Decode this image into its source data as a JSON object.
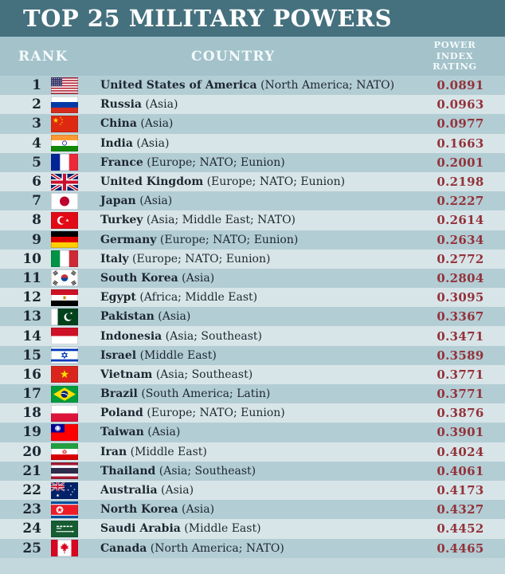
{
  "title": "TOP 25 MILITARY POWERS",
  "columns": {
    "rank": "RANK",
    "country": "COUNTRY",
    "rating_lines": [
      "POWER",
      "INDEX",
      "RATING"
    ]
  },
  "colors": {
    "page_bg": "#c2d8dd",
    "title_bg": "#45707e",
    "header_bg": "#a3c2ca",
    "row_odd": "#b3cdd4",
    "row_even": "#d8e5e8",
    "text_dark": "#1d2731",
    "rating_red": "#93323a"
  },
  "rows": [
    {
      "rank": "1",
      "flag": "us",
      "country": "United States of America",
      "region": "(North America; NATO)",
      "rating": "0.0891"
    },
    {
      "rank": "2",
      "flag": "ru",
      "country": "Russia",
      "region": "(Asia)",
      "rating": "0.0963"
    },
    {
      "rank": "3",
      "flag": "cn",
      "country": "China",
      "region": "(Asia)",
      "rating": "0.0977"
    },
    {
      "rank": "4",
      "flag": "in",
      "country": "India",
      "region": "(Asia)",
      "rating": "0.1663"
    },
    {
      "rank": "5",
      "flag": "fr",
      "country": "France",
      "region": "(Europe; NATO; Eunion)",
      "rating": "0.2001"
    },
    {
      "rank": "6",
      "flag": "gb",
      "country": "United Kingdom",
      "region": "(Europe; NATO; Eunion)",
      "rating": "0.2198"
    },
    {
      "rank": "7",
      "flag": "jp",
      "country": "Japan",
      "region": "(Asia)",
      "rating": "0.2227"
    },
    {
      "rank": "8",
      "flag": "tr",
      "country": "Turkey",
      "region": "(Asia; Middle East; NATO)",
      "rating": "0.2614"
    },
    {
      "rank": "9",
      "flag": "de",
      "country": "Germany",
      "region": "(Europe; NATO; Eunion)",
      "rating": "0.2634"
    },
    {
      "rank": "10",
      "flag": "it",
      "country": "Italy",
      "region": "(Europe; NATO; Eunion)",
      "rating": "0.2772"
    },
    {
      "rank": "11",
      "flag": "kr",
      "country": "South Korea",
      "region": "(Asia)",
      "rating": "0.2804"
    },
    {
      "rank": "12",
      "flag": "eg",
      "country": "Egypt",
      "region": "(Africa; Middle East)",
      "rating": "0.3095"
    },
    {
      "rank": "13",
      "flag": "pk",
      "country": "Pakistan",
      "region": "(Asia)",
      "rating": "0.3367"
    },
    {
      "rank": "14",
      "flag": "id",
      "country": "Indonesia",
      "region": "(Asia; Southeast)",
      "rating": "0.3471"
    },
    {
      "rank": "15",
      "flag": "il",
      "country": "Israel",
      "region": "(Middle East)",
      "rating": "0.3589"
    },
    {
      "rank": "16",
      "flag": "vn",
      "country": "Vietnam",
      "region": "(Asia; Southeast)",
      "rating": "0.3771"
    },
    {
      "rank": "17",
      "flag": "br",
      "country": "Brazil",
      "region": "(South America; Latin)",
      "rating": "0.3771"
    },
    {
      "rank": "18",
      "flag": "pl",
      "country": "Poland",
      "region": "(Europe; NATO; Eunion)",
      "rating": "0.3876"
    },
    {
      "rank": "19",
      "flag": "tw",
      "country": "Taiwan",
      "region": "(Asia)",
      "rating": "0.3901"
    },
    {
      "rank": "20",
      "flag": "ir",
      "country": "Iran",
      "region": "(Middle East)",
      "rating": "0.4024"
    },
    {
      "rank": "21",
      "flag": "th",
      "country": "Thailand",
      "region": "(Asia; Southeast)",
      "rating": "0.4061"
    },
    {
      "rank": "22",
      "flag": "au",
      "country": "Australia",
      "region": "(Asia)",
      "rating": "0.4173"
    },
    {
      "rank": "23",
      "flag": "kp",
      "country": "North Korea",
      "region": "(Asia)",
      "rating": "0.4327"
    },
    {
      "rank": "24",
      "flag": "sa",
      "country": "Saudi Arabia",
      "region": "(Middle East)",
      "rating": "0.4452"
    },
    {
      "rank": "25",
      "flag": "ca",
      "country": "Canada",
      "region": "(North America; NATO)",
      "rating": "0.4465"
    }
  ],
  "chart_data": {
    "type": "table",
    "title": "TOP 25 MILITARY POWERS",
    "columns": [
      "RANK",
      "COUNTRY",
      "POWER INDEX RATING"
    ],
    "rows": [
      [
        1,
        "United States of America (North America; NATO)",
        0.0891
      ],
      [
        2,
        "Russia (Asia)",
        0.0963
      ],
      [
        3,
        "China (Asia)",
        0.0977
      ],
      [
        4,
        "India (Asia)",
        0.1663
      ],
      [
        5,
        "France (Europe; NATO; Eunion)",
        0.2001
      ],
      [
        6,
        "United Kingdom (Europe; NATO; Eunion)",
        0.2198
      ],
      [
        7,
        "Japan (Asia)",
        0.2227
      ],
      [
        8,
        "Turkey (Asia; Middle East; NATO)",
        0.2614
      ],
      [
        9,
        "Germany (Europe; NATO; Eunion)",
        0.2634
      ],
      [
        10,
        "Italy (Europe; NATO; Eunion)",
        0.2772
      ],
      [
        11,
        "South Korea (Asia)",
        0.2804
      ],
      [
        12,
        "Egypt (Africa; Middle East)",
        0.3095
      ],
      [
        13,
        "Pakistan (Asia)",
        0.3367
      ],
      [
        14,
        "Indonesia (Asia; Southeast)",
        0.3471
      ],
      [
        15,
        "Israel (Middle East)",
        0.3589
      ],
      [
        16,
        "Vietnam (Asia; Southeast)",
        0.3771
      ],
      [
        17,
        "Brazil (South America; Latin)",
        0.3771
      ],
      [
        18,
        "Poland (Europe; NATO; Eunion)",
        0.3876
      ],
      [
        19,
        "Taiwan (Asia)",
        0.3901
      ],
      [
        20,
        "Iran (Middle East)",
        0.4024
      ],
      [
        21,
        "Thailand (Asia; Southeast)",
        0.4061
      ],
      [
        22,
        "Australia (Asia)",
        0.4173
      ],
      [
        23,
        "North Korea (Asia)",
        0.4327
      ],
      [
        24,
        "Saudi Arabia (Middle East)",
        0.4452
      ],
      [
        25,
        "Canada (North America; NATO)",
        0.4465
      ]
    ]
  }
}
